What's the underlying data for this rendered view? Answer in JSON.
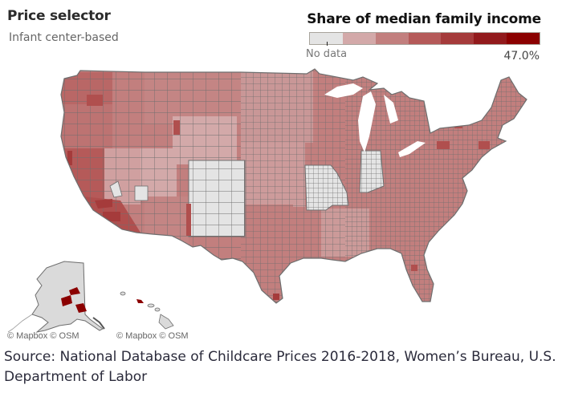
{
  "header": {
    "title": "Price selector",
    "subtitle": "Infant center-based"
  },
  "legend": {
    "title": "Share of median family income",
    "min_label": "No data",
    "max_label": "47.0%",
    "swatches": [
      "#e4e4e4",
      "#d3a9a9",
      "#c27f7e",
      "#b55a59",
      "#a53b3b",
      "#921a1c",
      "#8b0000"
    ]
  },
  "map": {
    "colors": {
      "no_data": "#e4e4e4",
      "light": "#d3a9a9",
      "mid": "#c27f7e",
      "mid_dark": "#b55a59",
      "dark": "#a53b3b",
      "darkest": "#8b0000",
      "border": "#6e6e6e"
    },
    "no_data_regions": [
      "Colorado",
      "Missouri",
      "Indiana",
      "Alaska",
      "Hawaii"
    ],
    "insets": [
      "Alaska",
      "Hawaii"
    ]
  },
  "credits": {
    "left": "© Mapbox © OSM",
    "right": "© Mapbox © OSM"
  },
  "footer": {
    "source": "Source: National Database of Childcare Prices 2016-2018, Women’s Bureau, U.S. Department of Labor"
  }
}
